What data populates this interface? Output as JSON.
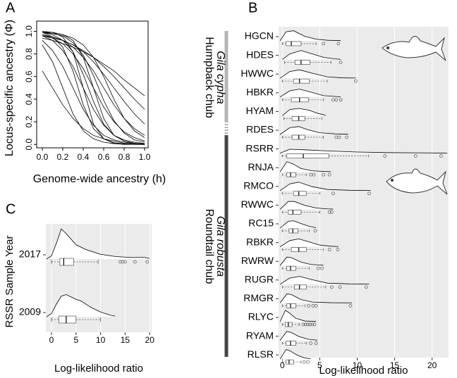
{
  "chart_data": [
    {
      "type": "line",
      "panel_label": "A",
      "xlabel": "Genome-wide ancestry (h)",
      "ylabel": "Locus-specific ancestry (Φ)",
      "x": [
        0,
        0.1,
        0.2,
        0.3,
        0.4,
        0.5,
        0.6,
        0.7,
        0.8,
        0.9,
        1.0
      ],
      "series": [
        {
          "color": "#000000",
          "values": [
            0.88,
            0.73,
            0.5,
            0.27,
            0.12,
            0.05,
            0.02,
            0.007,
            0.002,
            0.001,
            0
          ]
        },
        {
          "color": "#000000",
          "values": [
            0.92,
            0.83,
            0.69,
            0.5,
            0.31,
            0.17,
            0.08,
            0.04,
            0.02,
            0.008,
            0.004
          ]
        },
        {
          "color": "#000000",
          "values": [
            0.99,
            0.95,
            0.86,
            0.65,
            0.35,
            0.14,
            0.05,
            0.015,
            0.005,
            0.001,
            0
          ]
        },
        {
          "color": "#000000",
          "values": [
            0.96,
            0.92,
            0.83,
            0.69,
            0.5,
            0.31,
            0.17,
            0.08,
            0.04,
            0.02,
            0.008
          ]
        },
        {
          "color": "#000000",
          "values": [
            0.99,
            0.97,
            0.92,
            0.82,
            0.62,
            0.38,
            0.18,
            0.08,
            0.03,
            0.01,
            0.004
          ]
        },
        {
          "color": "#000000",
          "values": [
            0.97,
            0.94,
            0.89,
            0.8,
            0.67,
            0.5,
            0.33,
            0.2,
            0.11,
            0.06,
            0.03
          ]
        },
        {
          "color": "#000000",
          "values": [
            0.99,
            0.98,
            0.96,
            0.9,
            0.79,
            0.61,
            0.39,
            0.21,
            0.1,
            0.04,
            0.02
          ]
        },
        {
          "color": "#000000",
          "values": [
            0.97,
            0.95,
            0.92,
            0.86,
            0.77,
            0.65,
            0.5,
            0.35,
            0.23,
            0.14,
            0.08
          ]
        },
        {
          "color": "#000000",
          "values": [
            0.97,
            0.95,
            0.92,
            0.88,
            0.82,
            0.73,
            0.62,
            0.5,
            0.38,
            0.27,
            0.18
          ]
        },
        {
          "color": "#000000",
          "values": [
            0.96,
            0.94,
            0.92,
            0.88,
            0.83,
            0.77,
            0.69,
            0.6,
            0.5,
            0.4,
            0.31
          ]
        },
        {
          "color": "#000000",
          "values": [
            0.65,
            0.5,
            0.35,
            0.23,
            0.14,
            0.08,
            0.05,
            0.03,
            0.01,
            0.008,
            0.005
          ]
        },
        {
          "color": "#000000",
          "values": [
            1.0,
            0.99,
            0.95,
            0.82,
            0.5,
            0.18,
            0.05,
            0.01,
            0,
            0,
            0
          ]
        },
        {
          "color": "#000000",
          "values": [
            1.0,
            0.99,
            0.97,
            0.92,
            0.77,
            0.5,
            0.23,
            0.08,
            0.03,
            0.01,
            0
          ]
        },
        {
          "color": "#000000",
          "values": [
            0.99,
            0.99,
            0.97,
            0.94,
            0.88,
            0.77,
            0.6,
            0.4,
            0.23,
            0.12,
            0.06
          ]
        },
        {
          "color": "#000000",
          "values": [
            0.94,
            0.92,
            0.89,
            0.86,
            0.82,
            0.77,
            0.71,
            0.65,
            0.57,
            0.5,
            0.43
          ]
        }
      ],
      "xlim": [
        -0.055,
        1.034
      ],
      "ylim": [
        -0.03,
        1.09
      ],
      "xticks": [
        {
          "value": 0,
          "label": "0.0"
        },
        {
          "value": 0.2,
          "label": "0.2"
        },
        {
          "value": 0.4,
          "label": "0.4"
        },
        {
          "value": 0.6,
          "label": "0.6"
        },
        {
          "value": 0.8,
          "label": "0.8"
        },
        {
          "value": 1,
          "label": "1.0"
        }
      ],
      "yticks": [
        {
          "value": 0,
          "label": "0.0"
        },
        {
          "value": 0.2,
          "label": "0.2"
        },
        {
          "value": 0.4,
          "label": "0.4"
        },
        {
          "value": 0.6,
          "label": "0.6"
        },
        {
          "value": 0.8,
          "label": "0.8"
        },
        {
          "value": 1,
          "label": "1.0"
        }
      ]
    },
    {
      "type": "ridgeline",
      "panel_label": "B",
      "xlabel": "Log-likelihood ratio",
      "annotations": [
        "Humpback chub",
        "Gila cypha",
        "Roundtail chub",
        "Gila robusta"
      ],
      "xlim": [
        -0.5,
        22.2
      ],
      "xticks": [
        0,
        5,
        10,
        15,
        20
      ],
      "groups": [
        {
          "label": "HGCN",
          "density_x": [
            -0.3,
            0.5,
            1.5,
            3,
            4.5,
            6,
            7.8
          ],
          "density": [
            0,
            0.8,
            0.9,
            0.4,
            0.15,
            0.05,
            0.02
          ],
          "whisker_low": 0,
          "q1": 0.5,
          "median": 1.2,
          "q3": 2.5,
          "whisker_high": 4.5,
          "outliers": [
            5.5,
            7.5
          ]
        },
        {
          "label": "HDES",
          "density_x": [
            0,
            1,
            2.5,
            4,
            5.5,
            7,
            7.8
          ],
          "density": [
            0,
            0.5,
            0.8,
            0.5,
            0.2,
            0.06,
            0.02
          ],
          "whisker_low": 0.3,
          "q1": 1.7,
          "median": 2.5,
          "q3": 3.7,
          "whisker_high": 6.5,
          "outliers": [
            7.8
          ]
        },
        {
          "label": "HWWC",
          "density_x": [
            -0.3,
            1,
            2.3,
            4,
            6,
            8,
            9.8
          ],
          "density": [
            0,
            0.6,
            0.75,
            0.45,
            0.12,
            0.04,
            0.02
          ],
          "whisker_low": 0,
          "q1": 1.5,
          "median": 2.3,
          "q3": 3.6,
          "whisker_high": 6,
          "outliers": [
            9.8
          ]
        },
        {
          "label": "HBKR",
          "density_x": [
            -0.3,
            1,
            2.3,
            4,
            5.5,
            7,
            7.8
          ],
          "density": [
            0,
            0.55,
            0.7,
            0.4,
            0.12,
            0.05,
            0.02
          ],
          "whisker_low": 0,
          "q1": 1.2,
          "median": 2.3,
          "q3": 3.5,
          "whisker_high": 5.5,
          "outliers": [
            6.8,
            7.2,
            7.8
          ]
        },
        {
          "label": "HYAM",
          "density_x": [
            0,
            1,
            2.2,
            3.5,
            4.8,
            5.8
          ],
          "density": [
            0,
            0.55,
            0.65,
            0.5,
            0.2,
            0.04
          ],
          "whisker_low": 0.2,
          "q1": 1.3,
          "median": 2.2,
          "q3": 3,
          "whisker_high": 5.3,
          "outliers": []
        },
        {
          "label": "RDES",
          "density_x": [
            -0.3,
            1,
            2.2,
            3.5,
            5,
            7,
            8.8
          ],
          "density": [
            0,
            0.6,
            0.7,
            0.4,
            0.15,
            0.05,
            0.02
          ],
          "whisker_low": 0,
          "q1": 1.3,
          "median": 2.2,
          "q3": 3,
          "whisker_high": 5.5,
          "outliers": [
            7.2,
            7.6,
            8.6
          ]
        },
        {
          "label": "RSRR",
          "density_x": [
            -0.3,
            1,
            3,
            6,
            10,
            14,
            18,
            22
          ],
          "density": [
            0,
            0.35,
            0.3,
            0.2,
            0.1,
            0.05,
            0.03,
            0.01
          ],
          "whisker_low": 0,
          "q1": 0.6,
          "median": 2.8,
          "q3": 6.2,
          "whisker_high": 11.5,
          "outliers": [
            13.7,
            17.8,
            21.2
          ]
        },
        {
          "label": "RNJA",
          "density_x": [
            -0.3,
            0.6,
            1.3,
            2.5,
            4,
            5.5,
            6.5
          ],
          "density": [
            0,
            0.9,
            0.75,
            0.3,
            0.1,
            0.04,
            0.02
          ],
          "whisker_low": 0,
          "q1": 0.6,
          "median": 1.1,
          "q3": 1.8,
          "whisker_high": 3.2,
          "outliers": [
            3.8,
            4.2,
            5.5,
            6.3
          ]
        },
        {
          "label": "RMCO",
          "density_x": [
            -0.3,
            1,
            2.2,
            4,
            6,
            9,
            11.8
          ],
          "density": [
            0,
            0.6,
            0.75,
            0.35,
            0.1,
            0.03,
            0.01
          ],
          "whisker_low": 0,
          "q1": 1.5,
          "median": 2.2,
          "q3": 3.2,
          "whisker_high": 5,
          "outliers": [
            6.8,
            11.6
          ]
        },
        {
          "label": "RWWC",
          "density_x": [
            -0.3,
            0.8,
            1.6,
            3,
            4.5,
            6,
            6.8
          ],
          "density": [
            0,
            0.7,
            0.7,
            0.35,
            0.12,
            0.04,
            0.02
          ],
          "whisker_low": 0,
          "q1": 0.8,
          "median": 1.4,
          "q3": 2.5,
          "whisker_high": 5,
          "outliers": [
            6.3,
            6.6
          ]
        },
        {
          "label": "RC15",
          "density_x": [
            -0.3,
            0.8,
            1.5,
            2.5,
            3.6,
            4.5
          ],
          "density": [
            0,
            0.6,
            0.65,
            0.4,
            0.15,
            0.03
          ],
          "whisker_low": 0,
          "q1": 0.9,
          "median": 1.4,
          "q3": 2.1,
          "whisker_high": 3.6,
          "outliers": [
            4.4
          ]
        },
        {
          "label": "RBKR",
          "density_x": [
            -0.3,
            1,
            2.2,
            3.5,
            5,
            6.5,
            7.5
          ],
          "density": [
            0,
            0.55,
            0.7,
            0.45,
            0.15,
            0.05,
            0.02
          ],
          "whisker_low": 0,
          "q1": 1.2,
          "median": 2.2,
          "q3": 3.2,
          "whisker_high": 5.5,
          "outliers": [
            6.3,
            7.4
          ]
        },
        {
          "label": "RWRW",
          "density_x": [
            -0.3,
            0.6,
            1.2,
            2.5,
            3.8,
            5.5
          ],
          "density": [
            0,
            0.75,
            0.7,
            0.3,
            0.1,
            0.02
          ],
          "whisker_low": 0,
          "q1": 0.6,
          "median": 1.1,
          "q3": 1.8,
          "whisker_high": 3.6,
          "outliers": [
            4.8,
            5.3
          ]
        },
        {
          "label": "RUGR",
          "density_x": [
            -0.3,
            1,
            2.3,
            4,
            6,
            9,
            11.6
          ],
          "density": [
            0,
            0.55,
            0.7,
            0.4,
            0.1,
            0.03,
            0.01
          ],
          "whisker_low": 0,
          "q1": 1.6,
          "median": 2.3,
          "q3": 3.2,
          "whisker_high": 5.8,
          "outliers": [
            6.6,
            7.7,
            11.2
          ]
        },
        {
          "label": "RMGR",
          "density_x": [
            -0.3,
            0.6,
            1.2,
            2.5,
            4,
            6.5,
            9.3
          ],
          "density": [
            0,
            0.8,
            0.75,
            0.3,
            0.08,
            0.02,
            0.01
          ],
          "whisker_low": 0,
          "q1": 0.6,
          "median": 1.1,
          "q3": 1.8,
          "whisker_high": 3,
          "outliers": [
            3.5,
            4.1,
            4.5,
            9.1
          ]
        },
        {
          "label": "RLYC",
          "density_x": [
            -0.3,
            0.4,
            0.9,
            1.8,
            3,
            4.5
          ],
          "density": [
            0,
            1,
            0.8,
            0.3,
            0.06,
            0.02
          ],
          "whisker_low": 0,
          "q1": 0.4,
          "median": 0.8,
          "q3": 1.3,
          "whisker_high": 2.3,
          "outliers": [
            2.8,
            3.1,
            3.4,
            3.7,
            4,
            4.3
          ]
        },
        {
          "label": "RYAM",
          "density_x": [
            -0.3,
            0.6,
            1.2,
            2.2,
            3.5,
            4.7
          ],
          "density": [
            0,
            0.8,
            0.7,
            0.35,
            0.1,
            0.02
          ],
          "whisker_low": 0,
          "q1": 0.5,
          "median": 1.1,
          "q3": 1.8,
          "whisker_high": 3.2,
          "outliers": [
            3.8,
            4.5
          ]
        },
        {
          "label": "RLSR",
          "density_x": [
            -0.3,
            0.5,
            1,
            2,
            3,
            3.8
          ],
          "density": [
            0,
            0.85,
            0.75,
            0.35,
            0.1,
            0.03
          ],
          "whisker_low": 0,
          "q1": 0.5,
          "median": 0.9,
          "q3": 1.5,
          "whisker_high": 2.5,
          "outliers": [
            2.9,
            3.4
          ]
        }
      ]
    },
    {
      "type": "ridgeline",
      "panel_label": "C",
      "xlabel": "Log-likelihood ratio",
      "ylabel": "RSSR Sample Year",
      "xlim": [
        -1.15,
        20.4
      ],
      "xticks": [
        0,
        5,
        10,
        15,
        20
      ],
      "groups": [
        {
          "label": "2017",
          "density_x": [
            -1,
            0,
            1,
            2,
            3,
            5,
            7,
            10,
            13,
            16,
            19,
            20
          ],
          "density": [
            0,
            0.1,
            0.5,
            0.95,
            0.8,
            0.45,
            0.3,
            0.15,
            0.08,
            0.05,
            0.05,
            0.02
          ],
          "whisker_low": 0,
          "q1": 1.7,
          "median": 2.5,
          "q3": 4.5,
          "whisker_high": 9.5,
          "outliers": [
            14,
            14.5,
            15,
            17,
            19.5
          ]
        },
        {
          "label": "2009",
          "density_x": [
            -1,
            0,
            1,
            2,
            3,
            5,
            6,
            8,
            10,
            12,
            13
          ],
          "density": [
            0,
            0.1,
            0.4,
            0.65,
            0.7,
            0.55,
            0.5,
            0.3,
            0.15,
            0.05,
            0.02
          ],
          "whisker_low": 0,
          "q1": 1.5,
          "median": 3,
          "q3": 5,
          "whisker_high": 10,
          "outliers": []
        }
      ]
    }
  ]
}
